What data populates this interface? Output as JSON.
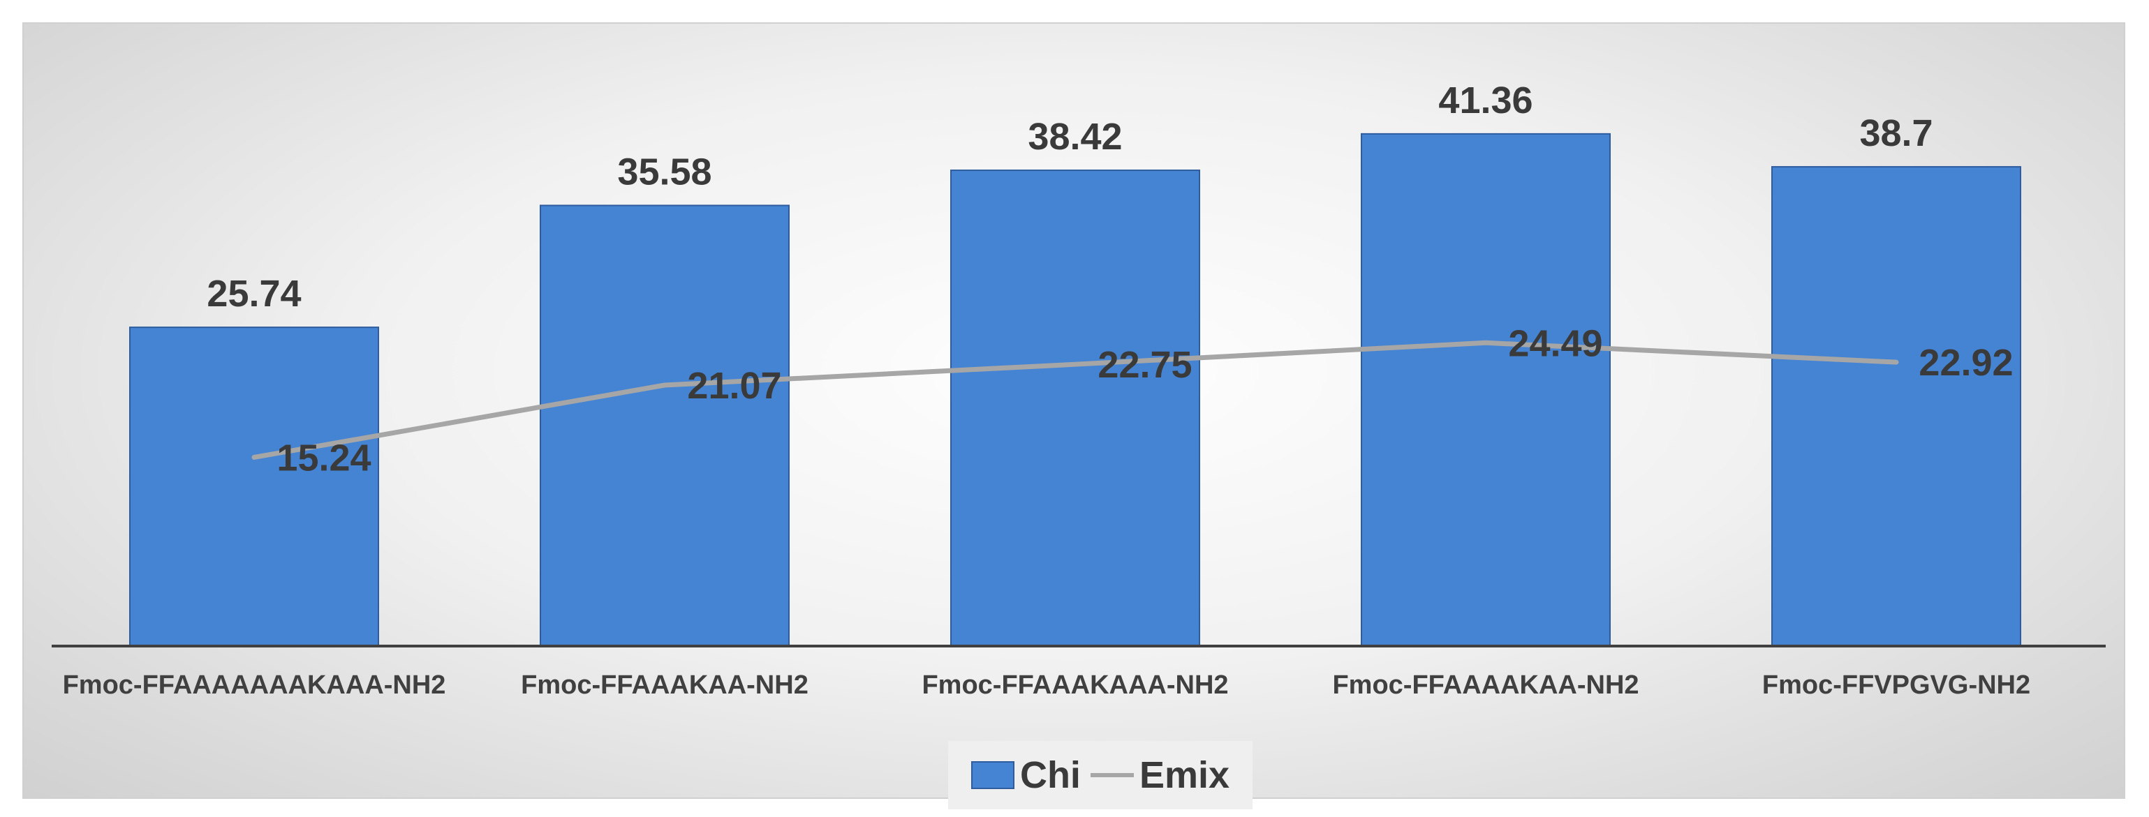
{
  "chart_data": {
    "type": "bar",
    "categories": [
      "Fmoc-FFAAAAAAAKAAA-NH2",
      "Fmoc-FFAAAKAA-NH2",
      "Fmoc-FFAAAKAAA-NH2",
      "Fmoc-FFAAAAKAA-NH2",
      "Fmoc-FFVPGVG-NH2"
    ],
    "series": [
      {
        "name": "Chi",
        "type": "bar",
        "values": [
          25.74,
          35.58,
          38.42,
          41.36,
          38.7
        ],
        "value_labels": [
          "25.74",
          "35.58",
          "38.42",
          "41.36",
          "38.7"
        ],
        "color": "#4584d3"
      },
      {
        "name": "Emix",
        "type": "line",
        "values": [
          15.24,
          21.07,
          22.75,
          24.49,
          22.92
        ],
        "value_labels": [
          "15.24",
          "21.07",
          "22.75",
          "24.49",
          "22.92"
        ],
        "color": "#a6a6a6"
      }
    ],
    "ylim": [
      0,
      45
    ],
    "grid": false,
    "legend_position": "bottom"
  }
}
